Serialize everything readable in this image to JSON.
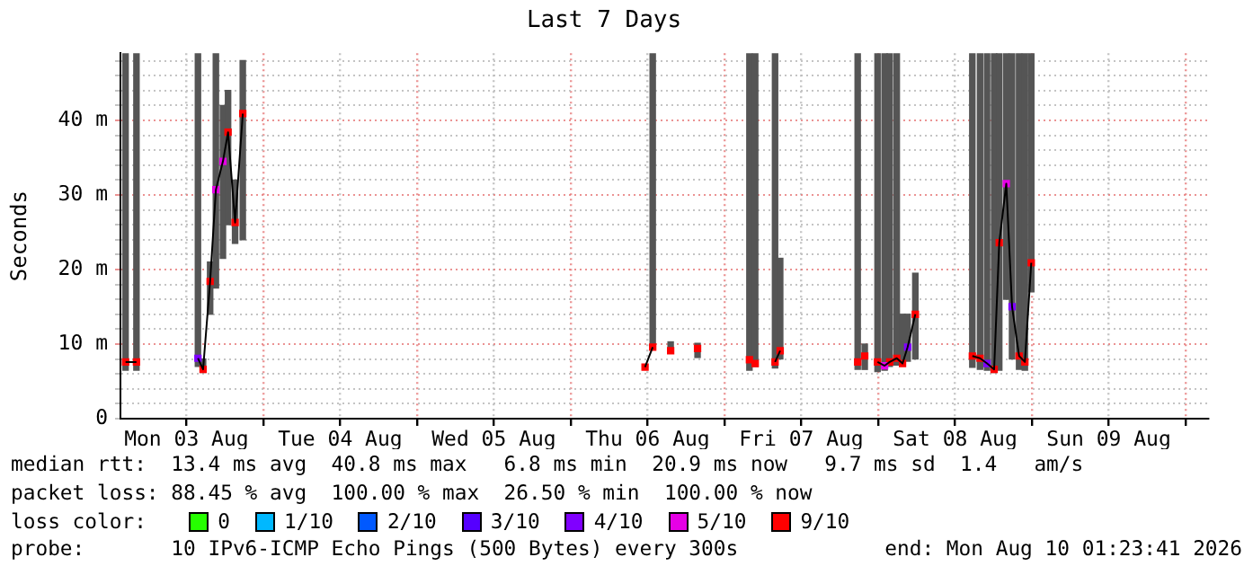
{
  "chart_data": {
    "type": "scatter",
    "title": "Last 7 Days",
    "ylabel": "Seconds",
    "legend_title": "loss color:",
    "legend": "bottom",
    "marker": "square",
    "grid": true,
    "xlim": [
      "2026-08-03T01:42",
      "2026-08-10T03:30"
    ],
    "xticks": [
      {
        "value": "2026-08-03T12:00",
        "label": "Mon 03 Aug"
      },
      {
        "value": "2026-08-04T00:00",
        "label": null
      },
      {
        "value": "2026-08-04T12:00",
        "label": "Tue 04 Aug"
      },
      {
        "value": "2026-08-05T00:00",
        "label": null
      },
      {
        "value": "2026-08-05T12:00",
        "label": "Wed 05 Aug"
      },
      {
        "value": "2026-08-06T00:00",
        "label": null
      },
      {
        "value": "2026-08-06T12:00",
        "label": "Thu 06 Aug"
      },
      {
        "value": "2026-08-07T00:00",
        "label": null
      },
      {
        "value": "2026-08-07T12:00",
        "label": "Fri 07 Aug"
      },
      {
        "value": "2026-08-08T00:00",
        "label": null
      },
      {
        "value": "2026-08-08T12:00",
        "label": "Sat 08 Aug"
      },
      {
        "value": "2026-08-09T00:00",
        "label": null
      },
      {
        "value": "2026-08-09T12:00",
        "label": "Sun 09 Aug"
      },
      {
        "value": "2026-08-10T00:00",
        "label": null
      }
    ],
    "ylim": [
      0,
      49
    ],
    "yticks": [
      0,
      {
        "value": 2,
        "label": null
      },
      {
        "value": 4,
        "label": null
      },
      {
        "value": 6,
        "label": null
      },
      {
        "value": 8,
        "label": null
      },
      {
        "value": 10,
        "label": "10 m"
      },
      {
        "value": 12,
        "label": null
      },
      {
        "value": 14,
        "label": null
      },
      {
        "value": 16,
        "label": null
      },
      {
        "value": 18,
        "label": null
      },
      {
        "value": 20,
        "label": "20 m"
      },
      {
        "value": 22,
        "label": null
      },
      {
        "value": 24,
        "label": null
      },
      {
        "value": 26,
        "label": null
      },
      {
        "value": 28,
        "label": null
      },
      {
        "value": 30,
        "label": "30 m"
      },
      {
        "value": 32,
        "label": null
      },
      {
        "value": 34,
        "label": null
      },
      {
        "value": 36,
        "label": null
      },
      {
        "value": 38,
        "label": null
      },
      {
        "value": 40,
        "label": "40 m"
      },
      {
        "value": 42,
        "label": null
      },
      {
        "value": 44,
        "label": null
      },
      {
        "value": 46,
        "label": null
      },
      {
        "value": 48,
        "label": null
      }
    ],
    "series": [
      {
        "type": "bar",
        "color": "#555555",
        "x": [
          "2026-08-03T02:30",
          "2026-08-03T04:12",
          "2026-08-03T13:48",
          "2026-08-03T14:36",
          "2026-08-03T15:42",
          "2026-08-03T16:36",
          "2026-08-03T17:42",
          "2026-08-03T18:30",
          "2026-08-03T19:36",
          "2026-08-03T20:48",
          "2026-08-06T11:36",
          "2026-08-06T12:48",
          "2026-08-06T15:36",
          "2026-08-06T19:48",
          "2026-08-07T03:54",
          "2026-08-07T04:48",
          "2026-08-07T07:54",
          "2026-08-07T08:42",
          "2026-08-07T20:48",
          "2026-08-07T21:54",
          "2026-08-07T23:54",
          "2026-08-08T01:00",
          "2026-08-08T01:48",
          "2026-08-08T02:54",
          "2026-08-08T03:48",
          "2026-08-08T04:36",
          "2026-08-08T05:48",
          "2026-08-08T14:42",
          "2026-08-08T15:54",
          "2026-08-08T17:00",
          "2026-08-08T18:06",
          "2026-08-08T18:54",
          "2026-08-08T20:00",
          "2026-08-08T20:54",
          "2026-08-08T22:00",
          "2026-08-08T22:54",
          "2026-08-08T23:54"
        ],
        "base": [
          6.5,
          6.5,
          7,
          6.2,
          14,
          17.5,
          21.5,
          26,
          23.5,
          24,
          null,
          9.5,
          8.8,
          8.2,
          6.5,
          7,
          6.8,
          8,
          6.6,
          6.6,
          6.3,
          6.5,
          7,
          7.2,
          7.3,
          7.7,
          8,
          6.9,
          6.6,
          6.5,
          6.2,
          6.5,
          16,
          8,
          6.6,
          6.5,
          17
        ],
        "values": [
          42.5,
          42.5,
          42,
          1.8,
          7,
          31.5,
          20.5,
          18,
          8.5,
          24,
          null,
          39.5,
          1.5,
          1.9,
          42.5,
          42,
          42.2,
          13.5,
          42.4,
          3.4,
          42.7,
          42.5,
          42,
          41.8,
          6.7,
          6.3,
          11.5,
          42.1,
          42.4,
          42.5,
          42.8,
          42.5,
          33,
          41,
          42.4,
          42.5,
          32
        ]
      },
      {
        "type": "line",
        "color": "#000000",
        "marker": "none",
        "x": [
          "2026-08-03T02:30",
          "2026-08-03T04:12",
          "2026-08-03T09:00",
          "2026-08-03T13:48",
          "2026-08-03T14:36",
          "2026-08-03T15:42",
          "2026-08-03T16:36",
          "2026-08-03T17:42",
          "2026-08-03T18:30",
          "2026-08-03T19:36",
          "2026-08-03T20:48",
          "2026-08-05T02:00",
          "2026-08-06T11:36",
          "2026-08-06T12:48",
          "2026-08-06T14:00",
          "2026-08-06T15:36",
          "2026-08-06T17:00",
          "2026-08-06T19:48",
          "2026-08-07T00:00",
          "2026-08-07T03:54",
          "2026-08-07T04:48",
          "2026-08-07T06:00",
          "2026-08-07T07:54",
          "2026-08-07T08:42",
          "2026-08-07T14:00",
          "2026-08-07T20:48",
          "2026-08-07T21:54",
          "2026-08-07T23:00",
          "2026-08-07T23:54",
          "2026-08-08T01:00",
          "2026-08-08T01:48",
          "2026-08-08T02:54",
          "2026-08-08T03:48",
          "2026-08-08T04:36",
          "2026-08-08T05:48",
          "2026-08-08T10:00",
          "2026-08-08T14:42",
          "2026-08-08T15:54",
          "2026-08-08T17:00",
          "2026-08-08T18:06",
          "2026-08-08T18:54",
          "2026-08-08T20:00",
          "2026-08-08T20:54",
          "2026-08-08T22:00",
          "2026-08-08T22:54",
          "2026-08-08T23:54"
        ],
        "values": [
          7.6,
          7.6,
          null,
          8.1,
          6.6,
          18.4,
          30.7,
          34.5,
          38.4,
          26.3,
          40.9,
          null,
          6.9,
          9.6,
          null,
          null,
          null,
          null,
          null,
          null,
          null,
          null,
          7.6,
          9.1,
          null,
          null,
          null,
          null,
          7.6,
          7.1,
          7.6,
          8.1,
          7.4,
          9.6,
          14,
          null,
          8.4,
          8.1,
          7.4,
          6.6,
          23.6,
          31.5,
          15,
          8.4,
          7.6,
          20.9
        ]
      },
      {
        "name": "0",
        "color": "#26ff00"
      },
      {
        "name": "1/10",
        "color": "#00b8ff"
      },
      {
        "name": "2/10",
        "color": "#0059ff"
      },
      {
        "name": "3/10",
        "color": "#5500ff"
      },
      {
        "name": "4/10",
        "color": "#8000ff",
        "x": [
          "2026-08-03T13:48",
          "2026-08-08T04:36",
          "2026-08-08T17:00",
          "2026-08-08T20:54"
        ],
        "values": [
          8.1,
          9.6,
          7.4,
          15
        ]
      },
      {
        "name": "5/10",
        "color": "#e600e6",
        "x": [
          "2026-08-03T16:36",
          "2026-08-03T17:42",
          "2026-08-08T01:00",
          "2026-08-08T20:00"
        ],
        "values": [
          30.7,
          34.5,
          7.1,
          31.5
        ]
      },
      {
        "name": "9/10",
        "color": "#ff0000",
        "x": [
          "2026-08-03T02:30",
          "2026-08-03T04:12",
          "2026-08-03T14:36",
          "2026-08-03T15:42",
          "2026-08-03T18:30",
          "2026-08-03T19:36",
          "2026-08-03T20:48",
          "2026-08-06T11:36",
          "2026-08-06T12:48",
          "2026-08-06T15:36",
          "2026-08-06T19:48",
          "2026-08-07T03:54",
          "2026-08-07T04:48",
          "2026-08-07T07:54",
          "2026-08-07T08:42",
          "2026-08-07T20:48",
          "2026-08-07T21:54",
          "2026-08-07T23:54",
          "2026-08-08T01:48",
          "2026-08-08T02:54",
          "2026-08-08T03:48",
          "2026-08-08T05:48",
          "2026-08-08T14:42",
          "2026-08-08T15:54",
          "2026-08-08T18:06",
          "2026-08-08T18:54",
          "2026-08-08T22:00",
          "2026-08-08T22:54",
          "2026-08-08T23:54"
        ],
        "values": [
          7.6,
          7.6,
          6.6,
          18.4,
          38.4,
          26.3,
          40.9,
          6.9,
          9.6,
          9.1,
          9.4,
          7.9,
          7.4,
          7.6,
          9.1,
          7.6,
          8.4,
          7.6,
          7.6,
          8.1,
          7.4,
          14,
          8.4,
          8.1,
          6.6,
          23.6,
          8.4,
          7.6,
          20.9
        ]
      }
    ],
    "annotations": [
      "median rtt:  13.4 ms avg  40.8 ms max   6.8 ms min  20.9 ms now   9.7 ms sd  1.4   am/s",
      "packet loss: 88.45 % avg  100.00 % max  26.50 % min  100.00 % now",
      "probe:       10 IPv6-ICMP Echo Pings (500 Bytes) every 300s",
      "end: Mon Aug 10 01:23:41 2026"
    ]
  }
}
